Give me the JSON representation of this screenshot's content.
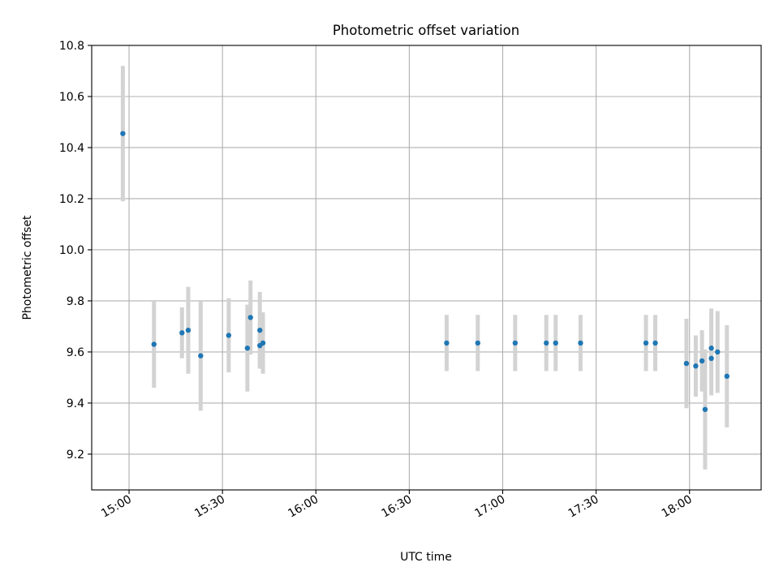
{
  "chart_data": {
    "type": "scatter",
    "title": "Photometric offset variation",
    "xlabel": "UTC time",
    "ylabel": "Photometric offset",
    "xlim": [
      "14:48",
      "18:23"
    ],
    "ylim": [
      9.06,
      10.8
    ],
    "x_ticks": [
      "15:00",
      "15:30",
      "16:00",
      "16:30",
      "17:00",
      "17:30",
      "18:00"
    ],
    "y_ticks": [
      "9.2",
      "9.4",
      "9.6",
      "9.8",
      "10.0",
      "10.2",
      "10.4",
      "10.6",
      "10.8"
    ],
    "grid": true,
    "colors": {
      "point": "#1f77b4",
      "errorbar": "#d3d3d3",
      "grid": "#b0b0b0"
    },
    "series": [
      {
        "points": [
          {
            "x": "14:58",
            "y": 10.455,
            "err": 0.265
          },
          {
            "x": "15:08",
            "y": 9.63,
            "err": 0.17
          },
          {
            "x": "15:17",
            "y": 9.675,
            "err": 0.1
          },
          {
            "x": "15:19",
            "y": 9.685,
            "err": 0.17
          },
          {
            "x": "15:23",
            "y": 9.585,
            "err": 0.215
          },
          {
            "x": "15:32",
            "y": 9.665,
            "err": 0.145
          },
          {
            "x": "15:38",
            "y": 9.615,
            "err": 0.17
          },
          {
            "x": "15:39",
            "y": 9.735,
            "err": 0.145
          },
          {
            "x": "15:42",
            "y": 9.685,
            "err": 0.15
          },
          {
            "x": "15:42",
            "y": 9.625,
            "err": 0.09
          },
          {
            "x": "15:43",
            "y": 9.635,
            "err": 0.12
          },
          {
            "x": "16:42",
            "y": 9.635,
            "err": 0.11
          },
          {
            "x": "16:52",
            "y": 9.635,
            "err": 0.11
          },
          {
            "x": "17:04",
            "y": 9.635,
            "err": 0.11
          },
          {
            "x": "17:14",
            "y": 9.635,
            "err": 0.11
          },
          {
            "x": "17:17",
            "y": 9.635,
            "err": 0.11
          },
          {
            "x": "17:25",
            "y": 9.635,
            "err": 0.11
          },
          {
            "x": "17:46",
            "y": 9.635,
            "err": 0.11
          },
          {
            "x": "17:49",
            "y": 9.635,
            "err": 0.11
          },
          {
            "x": "17:59",
            "y": 9.555,
            "err": 0.175
          },
          {
            "x": "18:02",
            "y": 9.545,
            "err": 0.12
          },
          {
            "x": "18:04",
            "y": 9.565,
            "err": 0.12
          },
          {
            "x": "18:05",
            "y": 9.375,
            "err": 0.235
          },
          {
            "x": "18:07",
            "y": 9.575,
            "err": 0.145
          },
          {
            "x": "18:07",
            "y": 9.615,
            "err": 0.155
          },
          {
            "x": "18:09",
            "y": 9.6,
            "err": 0.16
          },
          {
            "x": "18:12",
            "y": 9.505,
            "err": 0.2
          }
        ]
      }
    ]
  }
}
